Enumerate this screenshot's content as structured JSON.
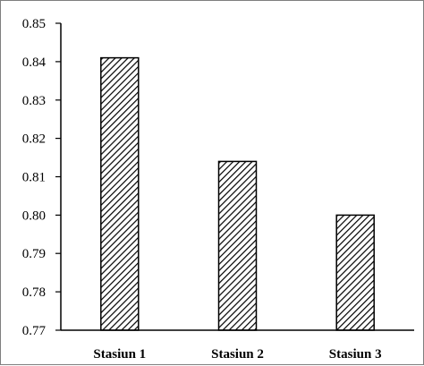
{
  "chart_data": {
    "type": "bar",
    "categories": [
      "Stasiun 1",
      "Stasiun 2",
      "Stasiun 3"
    ],
    "values": [
      0.841,
      0.814,
      0.8
    ],
    "ylim": [
      0.77,
      0.85
    ],
    "yticks": [
      "0.77",
      "0.78",
      "0.79",
      "0.80",
      "0.81",
      "0.82",
      "0.83",
      "0.84",
      "0.85"
    ],
    "grid": false,
    "legend": "none",
    "bar_fill": "diagonal-hatch",
    "colors": {
      "bar_stroke": "#000000",
      "hatch": "#000000",
      "axis": "#000000",
      "frame": "#7f7f7f"
    }
  }
}
